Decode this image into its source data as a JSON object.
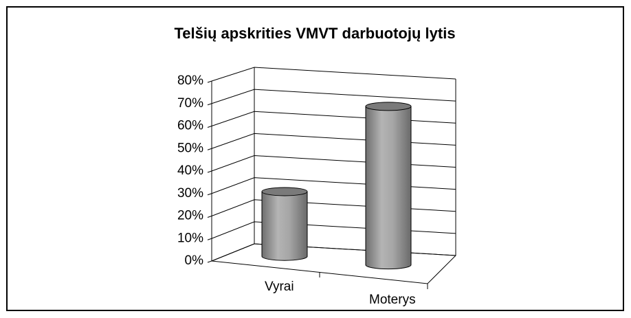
{
  "chart_data": {
    "type": "bar",
    "title": "Telšių apskrities VMVT darbuotojų lytis",
    "categories": [
      "Vyrai",
      "Moterys"
    ],
    "values": [
      29,
      71
    ],
    "color": "#a0a0a0",
    "ylim": [
      0,
      80
    ],
    "yticks": [
      {
        "value": 0,
        "label": "0%"
      },
      {
        "value": 10,
        "label": "10%"
      },
      {
        "value": 20,
        "label": "20%"
      },
      {
        "value": 30,
        "label": "30%"
      },
      {
        "value": 40,
        "label": "40%"
      },
      {
        "value": 50,
        "label": "50%"
      },
      {
        "value": 60,
        "label": "60%"
      },
      {
        "value": 70,
        "label": "70%"
      },
      {
        "value": 80,
        "label": "80%"
      }
    ],
    "grid": true
  }
}
